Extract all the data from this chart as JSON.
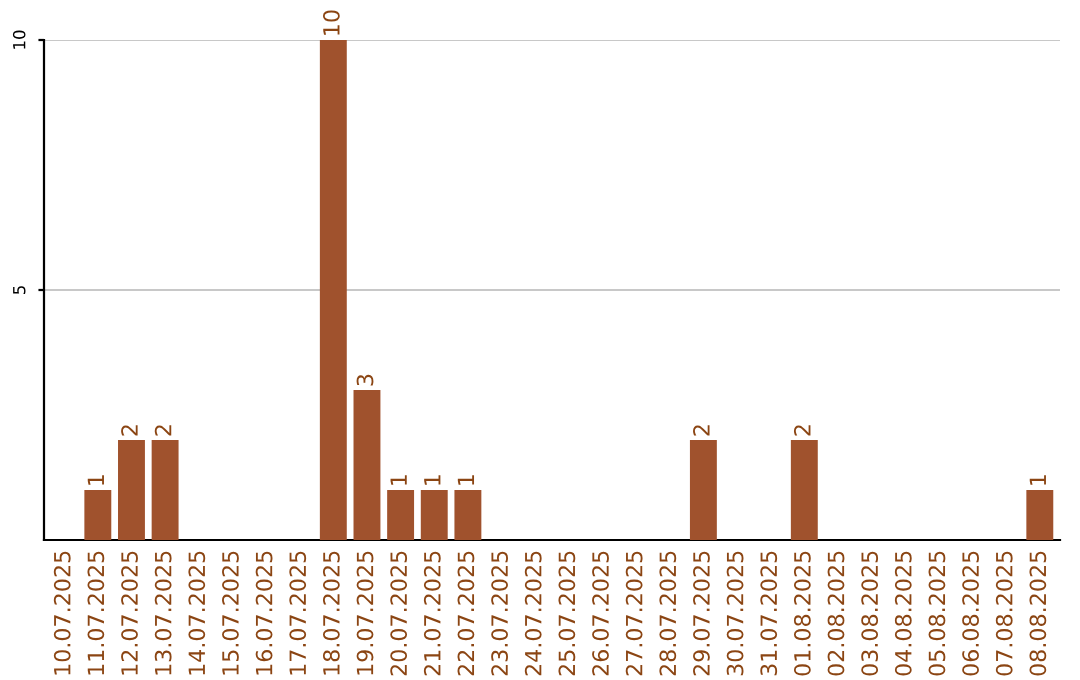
{
  "chart_data": {
    "type": "bar",
    "categories": [
      "10.07.2025",
      "11.07.2025",
      "12.07.2025",
      "13.07.2025",
      "14.07.2025",
      "15.07.2025",
      "16.07.2025",
      "17.07.2025",
      "18.07.2025",
      "19.07.2025",
      "20.07.2025",
      "21.07.2025",
      "22.07.2025",
      "23.07.2025",
      "24.07.2025",
      "25.07.2025",
      "26.07.2025",
      "27.07.2025",
      "28.07.2025",
      "29.07.2025",
      "30.07.2025",
      "31.07.2025",
      "01.08.2025",
      "02.08.2025",
      "03.08.2025",
      "04.08.2025",
      "05.08.2025",
      "06.08.2025",
      "07.08.2025",
      "08.08.2025"
    ],
    "values": [
      0,
      1,
      2,
      2,
      0,
      0,
      0,
      0,
      10,
      3,
      1,
      1,
      1,
      0,
      0,
      0,
      0,
      0,
      0,
      2,
      0,
      0,
      2,
      0,
      0,
      0,
      0,
      0,
      0,
      1
    ],
    "value_labels": [
      null,
      "1",
      "2",
      "2",
      null,
      null,
      null,
      null,
      "10",
      "3",
      "1",
      "1",
      "1",
      null,
      null,
      null,
      null,
      null,
      null,
      "2",
      null,
      null,
      "2",
      null,
      null,
      null,
      null,
      null,
      null,
      "1"
    ],
    "color": "#a0522d",
    "ylim": [
      0,
      10
    ],
    "yticks": [
      5,
      10
    ],
    "grid": "y"
  }
}
